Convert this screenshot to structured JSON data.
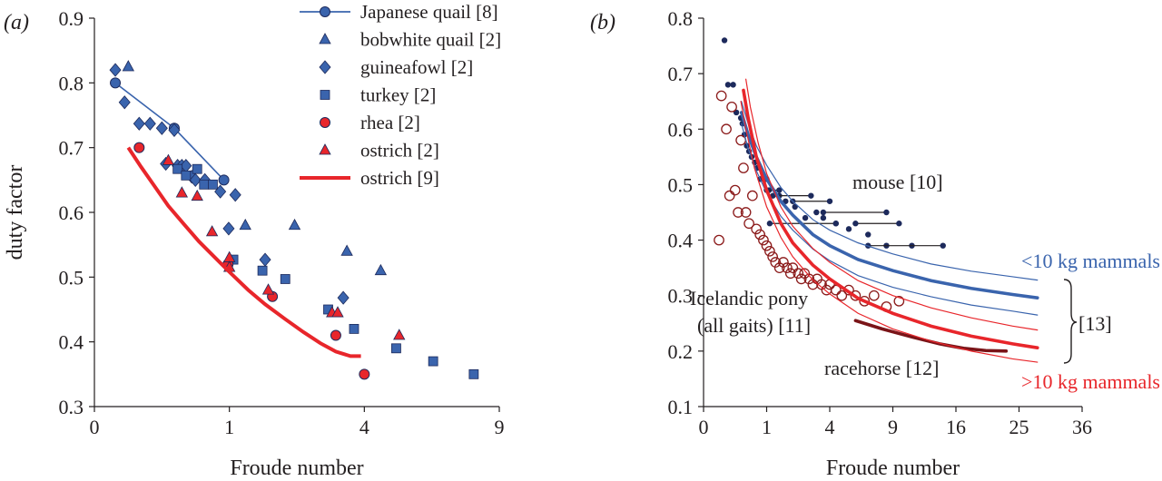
{
  "chart_data": [
    {
      "type": "scatter",
      "panel_label": "(a)",
      "xlabel": "Froude number",
      "ylabel": "duty factor",
      "x_scale": "sqrt",
      "xlim": [
        0,
        9
      ],
      "ylim": [
        0.3,
        0.9
      ],
      "x_ticks": [
        0,
        1,
        4,
        9
      ],
      "x_tick_labels": [
        "0",
        "1",
        "4",
        "9"
      ],
      "y_ticks": [
        0.3,
        0.4,
        0.5,
        0.6,
        0.7,
        0.8,
        0.9
      ],
      "y_tick_labels": [
        "0.3",
        "0.4",
        "0.5",
        "0.6",
        "0.7",
        "0.8",
        "0.9"
      ],
      "grid": false,
      "legend_position": "top-center",
      "series": [
        {
          "name": "Japanese quail [8]",
          "marker": "circle",
          "color": "#3a64ad",
          "line": true,
          "x": [
            0.024,
            0.35,
            0.92
          ],
          "y": [
            0.8,
            0.73,
            0.65
          ]
        },
        {
          "name": "bobwhite quail [2]",
          "marker": "triangle",
          "color": "#3a64ad",
          "line": false,
          "x": [
            0.063,
            1.25,
            2.2,
            3.5,
            4.5
          ],
          "y": [
            0.825,
            0.58,
            0.58,
            0.54,
            0.51
          ]
        },
        {
          "name": "guineafowl [2]",
          "marker": "diamond",
          "color": "#3a64ad",
          "line": false,
          "x": [
            0.024,
            0.05,
            0.11,
            0.17,
            0.25,
            0.28,
            0.35,
            0.38,
            0.42,
            0.46,
            0.52,
            0.56,
            0.67,
            0.87,
            0.99,
            1.09,
            1.6,
            3.4
          ],
          "y": [
            0.82,
            0.77,
            0.737,
            0.737,
            0.73,
            0.675,
            0.727,
            0.672,
            0.672,
            0.672,
            0.655,
            0.65,
            0.65,
            0.632,
            0.575,
            0.627,
            0.527,
            0.468
          ]
        },
        {
          "name": "turkey [2]",
          "marker": "square",
          "color": "#3a64ad",
          "line": false,
          "x": [
            0.38,
            0.46,
            0.58,
            0.66,
            0.77,
            1.06,
            1.55,
            2.0,
            3.0,
            3.7,
            5.0,
            6.3,
            7.9
          ],
          "y": [
            0.667,
            0.657,
            0.667,
            0.643,
            0.643,
            0.527,
            0.51,
            0.497,
            0.45,
            0.42,
            0.39,
            0.37,
            0.35
          ]
        },
        {
          "name": "rhea [2]",
          "marker": "circle",
          "color": "#e8262b",
          "line": false,
          "x": [
            0.11,
            0.98,
            1.74,
            3.2,
            4.0
          ],
          "y": [
            0.7,
            0.52,
            0.47,
            0.41,
            0.35
          ]
        },
        {
          "name": "ostrich [2]",
          "marker": "triangle",
          "color": "#e8262b",
          "line": false,
          "x": [
            0.3,
            0.42,
            0.58,
            0.76,
            1.0,
            1.0,
            1.66,
            3.1,
            3.25,
            5.1
          ],
          "y": [
            0.68,
            0.63,
            0.625,
            0.57,
            0.53,
            0.515,
            0.48,
            0.445,
            0.445,
            0.41
          ]
        },
        {
          "name": "ostrich [9]",
          "marker": "none",
          "color": "#e8262b",
          "line": true,
          "x": [
            0.063,
            0.12,
            0.2,
            0.3,
            0.45,
            0.6,
            0.8,
            1.0,
            1.3,
            1.6,
            2.0,
            2.4,
            2.8,
            3.2,
            3.6,
            3.9
          ],
          "y": [
            0.7,
            0.67,
            0.64,
            0.61,
            0.58,
            0.555,
            0.53,
            0.508,
            0.48,
            0.458,
            0.435,
            0.415,
            0.398,
            0.385,
            0.378,
            0.378
          ]
        }
      ]
    },
    {
      "type": "scatter",
      "panel_label": "(b)",
      "xlabel": "Froude number",
      "ylabel": "",
      "x_scale": "sqrt",
      "xlim": [
        0,
        36
      ],
      "ylim": [
        0.1,
        0.8
      ],
      "x_ticks": [
        0,
        1,
        4,
        9,
        16,
        25,
        36
      ],
      "x_tick_labels": [
        "0",
        "1",
        "4",
        "9",
        "16",
        "25",
        "36"
      ],
      "y_ticks": [
        0.1,
        0.2,
        0.3,
        0.4,
        0.5,
        0.6,
        0.7,
        0.8
      ],
      "y_tick_labels": [
        "0.1",
        "0.2",
        "0.3",
        "0.4",
        "0.5",
        "0.6",
        "0.7",
        "0.8"
      ],
      "grid": false,
      "annotations": [
        {
          "text": "mouse [10]",
          "color": "#231f20"
        },
        {
          "text": "<10 kg mammals",
          "color": "#3a64ad"
        },
        {
          "text": "[13]",
          "color": "#231f20"
        },
        {
          "text": "Icelandic pony",
          "color": "#231f20"
        },
        {
          "text": "(all gaits) [11]",
          "color": "#231f20"
        },
        {
          "text": "racehorse [12]",
          "color": "#231f20"
        },
        {
          "text": ">10 kg mammals",
          "color": "#e8262b"
        }
      ],
      "series": [
        {
          "name": "mouse [10]",
          "marker": "filled-circle",
          "color": "#1d2a5c",
          "x": [
            0.11,
            0.15,
            0.22,
            0.27,
            0.35,
            0.38,
            0.42,
            0.47,
            0.52,
            0.58,
            0.66,
            0.72,
            0.81,
            1.0,
            1.08,
            1.44,
            1.69,
            2.1,
            2.6,
            3.2,
            3.6,
            4.4,
            5.3,
            6.8,
            8.4,
            10.9
          ],
          "y": [
            0.76,
            0.68,
            0.68,
            0.63,
            0.62,
            0.61,
            0.59,
            0.57,
            0.56,
            0.55,
            0.54,
            0.53,
            0.51,
            0.51,
            0.49,
            0.48,
            0.47,
            0.46,
            0.44,
            0.45,
            0.44,
            0.43,
            0.42,
            0.41,
            0.39,
            0.39
          ]
        },
        {
          "name": "mouse [10] ranges",
          "marker": "range",
          "color": "#231f20",
          "x_start": [
            1.0,
            1.21,
            2.0,
            1.1,
            3.6,
            5.8,
            6.8
          ],
          "x_end": [
            1.44,
            2.9,
            4.0,
            4.4,
            8.4,
            9.6,
            14.4
          ],
          "y": [
            0.49,
            0.48,
            0.47,
            0.43,
            0.45,
            0.43,
            0.39
          ]
        },
        {
          "name": "Icelandic pony (all gaits) [11]",
          "marker": "open-circle",
          "color": "#8b1a1a",
          "x": [
            0.06,
            0.08,
            0.13,
            0.17,
            0.2,
            0.25,
            0.3,
            0.35,
            0.4,
            0.45,
            0.52,
            0.6,
            0.7,
            0.8,
            0.9,
            1.0,
            1.1,
            1.2,
            1.3,
            1.45,
            1.6,
            1.75,
            1.9,
            2.0,
            2.25,
            2.4,
            2.56,
            2.8,
            3.0,
            3.24,
            3.5,
            3.8,
            4.0,
            4.4,
            4.8,
            5.3,
            5.8,
            6.5,
            7.3,
            8.4,
            9.6
          ],
          "y": [
            0.4,
            0.66,
            0.6,
            0.48,
            0.64,
            0.49,
            0.45,
            0.58,
            0.53,
            0.45,
            0.43,
            0.48,
            0.42,
            0.41,
            0.4,
            0.39,
            0.38,
            0.37,
            0.36,
            0.35,
            0.36,
            0.35,
            0.34,
            0.35,
            0.34,
            0.33,
            0.34,
            0.33,
            0.32,
            0.33,
            0.32,
            0.31,
            0.32,
            0.31,
            0.3,
            0.31,
            0.3,
            0.29,
            0.3,
            0.28,
            0.29
          ]
        },
        {
          "name": "racehorse [12]",
          "marker": "none",
          "color": "#7a1418",
          "x": [
            5.8,
            8.0,
            11.0,
            14.0,
            17.0,
            20.0,
            23.0
          ],
          "y": [
            0.255,
            0.24,
            0.225,
            0.213,
            0.205,
            0.201,
            0.2
          ]
        },
        {
          "name": "<10 kg mammals",
          "marker": "none",
          "color": "#3a64ad",
          "x": [
            0.36,
            0.5,
            0.7,
            1.0,
            1.5,
            2.0,
            3.0,
            4.0,
            6.0,
            9.0,
            13.0,
            18.0,
            24.0,
            28.0
          ],
          "y": [
            0.63,
            0.59,
            0.55,
            0.51,
            0.47,
            0.445,
            0.41,
            0.39,
            0.365,
            0.345,
            0.327,
            0.313,
            0.302,
            0.296
          ]
        },
        {
          "name": "<10 kg mammals upper",
          "marker": "none",
          "color": "#3a64ad",
          "x": [
            0.36,
            0.5,
            0.7,
            1.0,
            1.5,
            2.0,
            3.0,
            4.0,
            6.0,
            9.0,
            13.0,
            18.0,
            24.0,
            28.0
          ],
          "y": [
            0.65,
            0.61,
            0.57,
            0.535,
            0.495,
            0.47,
            0.437,
            0.418,
            0.395,
            0.375,
            0.357,
            0.344,
            0.334,
            0.328
          ]
        },
        {
          "name": "<10 kg mammals lower",
          "marker": "none",
          "color": "#3a64ad",
          "x": [
            0.36,
            0.5,
            0.7,
            1.0,
            1.5,
            2.0,
            3.0,
            4.0,
            6.0,
            9.0,
            13.0,
            18.0,
            24.0,
            28.0
          ],
          "y": [
            0.61,
            0.565,
            0.525,
            0.485,
            0.443,
            0.418,
            0.384,
            0.363,
            0.336,
            0.315,
            0.298,
            0.283,
            0.272,
            0.265
          ]
        },
        {
          "name": ">10 kg mammals",
          "marker": "none",
          "color": "#e8262b",
          "x": [
            0.4,
            0.5,
            0.7,
            1.0,
            1.5,
            2.0,
            3.0,
            4.0,
            6.0,
            9.0,
            13.0,
            18.0,
            24.0,
            28.0
          ],
          "y": [
            0.67,
            0.62,
            0.55,
            0.49,
            0.43,
            0.395,
            0.355,
            0.33,
            0.295,
            0.268,
            0.245,
            0.227,
            0.213,
            0.206
          ]
        },
        {
          "name": ">10 kg mammals upper",
          "marker": "none",
          "color": "#e8262b",
          "x": [
            0.45,
            0.55,
            0.75,
            1.0,
            1.5,
            2.0,
            3.0,
            4.0,
            6.0,
            9.0,
            13.0,
            18.0,
            24.0,
            28.0
          ],
          "y": [
            0.69,
            0.64,
            0.575,
            0.52,
            0.46,
            0.425,
            0.385,
            0.36,
            0.327,
            0.3,
            0.278,
            0.26,
            0.245,
            0.238
          ]
        },
        {
          "name": ">10 kg mammals lower",
          "marker": "none",
          "color": "#e8262b",
          "x": [
            0.35,
            0.45,
            0.65,
            1.0,
            1.5,
            2.0,
            3.0,
            4.0,
            6.0,
            9.0,
            13.0,
            18.0,
            24.0,
            28.0
          ],
          "y": [
            0.65,
            0.6,
            0.53,
            0.46,
            0.405,
            0.37,
            0.328,
            0.303,
            0.268,
            0.24,
            0.218,
            0.2,
            0.186,
            0.18
          ]
        }
      ]
    }
  ]
}
